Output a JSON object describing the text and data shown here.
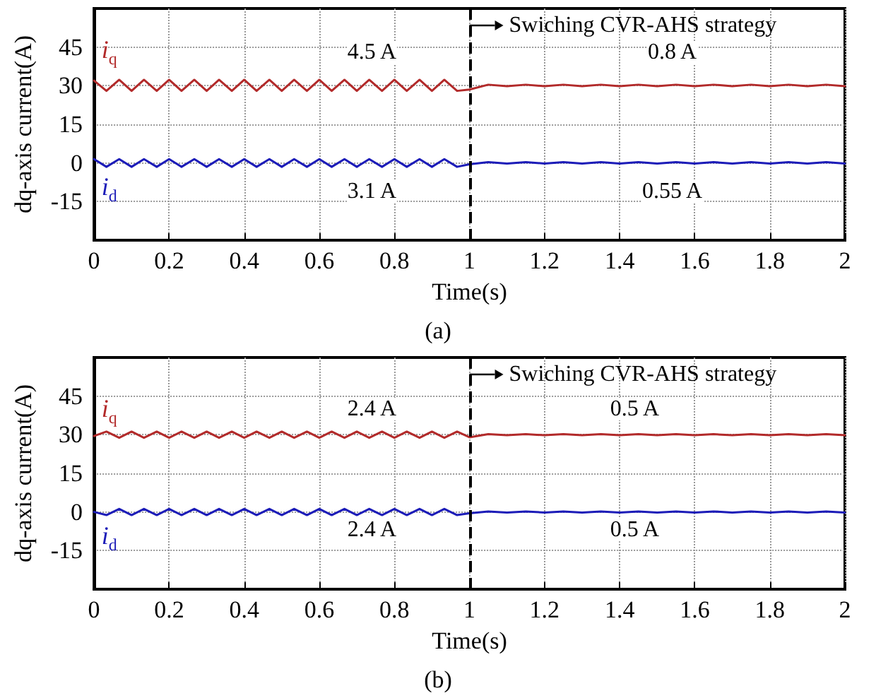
{
  "chart_data": [
    {
      "type": "line",
      "xlabel": "Time(s)",
      "ylabel": "dq-axis current(A)",
      "xlim": [
        0,
        2
      ],
      "ylim": [
        -30,
        60
      ],
      "xticks": [
        0,
        0.2,
        0.4,
        0.6,
        0.8,
        1,
        1.2,
        1.4,
        1.6,
        1.8,
        2
      ],
      "yticks": [
        -15,
        0,
        15,
        30,
        45
      ],
      "grid": true,
      "line_style": "solid",
      "x": [
        0,
        0.033,
        0.067,
        0.1,
        0.133,
        0.167,
        0.2,
        0.233,
        0.267,
        0.3,
        0.333,
        0.367,
        0.4,
        0.433,
        0.467,
        0.5,
        0.533,
        0.567,
        0.6,
        0.633,
        0.667,
        0.7,
        0.733,
        0.767,
        0.8,
        0.833,
        0.867,
        0.9,
        0.933,
        0.967,
        1,
        1.05,
        1.1,
        1.15,
        1.2,
        1.25,
        1.3,
        1.35,
        1.4,
        1.45,
        1.5,
        1.55,
        1.6,
        1.65,
        1.7,
        1.75,
        1.8,
        1.85,
        1.9,
        1.95,
        2
      ],
      "series": [
        {
          "name": "i$_{q}$",
          "color": "#b22a2a",
          "values": [
            32,
            28,
            32.3,
            28,
            32.3,
            28,
            32.3,
            28,
            32.3,
            28,
            32.3,
            28,
            32.3,
            28,
            32.3,
            28,
            32.3,
            28,
            32.3,
            28,
            32.3,
            28,
            32.3,
            28,
            32.3,
            28,
            32.3,
            28,
            32.3,
            28,
            28.5,
            30.4,
            29.8,
            30.4,
            29.8,
            30.4,
            29.8,
            30.4,
            29.8,
            30.4,
            29.8,
            30.4,
            29.8,
            30.4,
            29.8,
            30.4,
            29.8,
            30.4,
            29.8,
            30.4,
            29.8
          ]
        },
        {
          "name": "i$_{d}$",
          "color": "#1c1cb8",
          "values": [
            1.5,
            -1.5,
            1.5,
            -1.5,
            1.5,
            -1.5,
            1.5,
            -1.5,
            1.5,
            -1.5,
            1.5,
            -1.5,
            1.5,
            -1.5,
            1.5,
            -1.5,
            1.5,
            -1.5,
            1.5,
            -1.5,
            1.5,
            -1.5,
            1.5,
            -1.5,
            1.5,
            -1.5,
            1.5,
            -1.5,
            1.5,
            -1.5,
            -0.5,
            0.3,
            -0.2,
            0.3,
            -0.2,
            0.3,
            -0.2,
            0.3,
            -0.2,
            0.3,
            -0.2,
            0.3,
            -0.2,
            0.3,
            -0.2,
            0.3,
            -0.2,
            0.3,
            -0.2,
            0.3,
            -0.2
          ]
        }
      ],
      "ref_lines": [
        {
          "axis": "x",
          "value": 1,
          "label": "Swiching CVR-AHS strategy",
          "line_style": "dashed",
          "color": "#000000"
        }
      ],
      "annotations": [
        {
          "text": "4.5 A",
          "x": 0.74,
          "y": 43
        },
        {
          "text": "0.8 A",
          "x": 1.54,
          "y": 43
        },
        {
          "text": "3.1 A",
          "x": 0.74,
          "y": -11
        },
        {
          "text": "0.55 A",
          "x": 1.54,
          "y": -11
        },
        "(a)"
      ]
    },
    {
      "type": "line",
      "xlabel": "Time(s)",
      "ylabel": "dq-axis current(A)",
      "xlim": [
        0,
        2
      ],
      "ylim": [
        -30,
        60
      ],
      "xticks": [
        0,
        0.2,
        0.4,
        0.6,
        0.8,
        1,
        1.2,
        1.4,
        1.6,
        1.8,
        2
      ],
      "yticks": [
        -15,
        0,
        15,
        30,
        45
      ],
      "grid": true,
      "line_style": "solid",
      "x": [
        0,
        0.033,
        0.067,
        0.1,
        0.133,
        0.167,
        0.2,
        0.233,
        0.267,
        0.3,
        0.333,
        0.367,
        0.4,
        0.433,
        0.467,
        0.5,
        0.533,
        0.567,
        0.6,
        0.633,
        0.667,
        0.7,
        0.733,
        0.767,
        0.8,
        0.833,
        0.867,
        0.9,
        0.933,
        0.967,
        1,
        1.05,
        1.1,
        1.15,
        1.2,
        1.25,
        1.3,
        1.35,
        1.4,
        1.45,
        1.5,
        1.55,
        1.6,
        1.65,
        1.7,
        1.75,
        1.8,
        1.85,
        1.9,
        1.95,
        2
      ],
      "series": [
        {
          "name": "i$_{q}$",
          "color": "#b22a2a",
          "values": [
            29.5,
            31.2,
            28.8,
            31.2,
            28.8,
            31.2,
            28.8,
            31.2,
            28.8,
            31.2,
            28.8,
            31.2,
            28.8,
            31.2,
            28.8,
            31.2,
            28.8,
            31.2,
            28.8,
            31.2,
            28.8,
            31.2,
            28.8,
            31.2,
            28.8,
            31.2,
            28.8,
            31.2,
            28.8,
            31.2,
            29,
            30.2,
            29.8,
            30.2,
            29.8,
            30.2,
            29.8,
            30.2,
            29.8,
            30.2,
            29.8,
            30.2,
            29.8,
            30.2,
            29.8,
            30.2,
            29.8,
            30.2,
            29.8,
            30.2,
            29.8
          ]
        },
        {
          "name": "i$_{d}$",
          "color": "#1c1cb8",
          "values": [
            0,
            -1.2,
            1.2,
            -1.2,
            1.2,
            -1.2,
            1.2,
            -1.2,
            1.2,
            -1.2,
            1.2,
            -1.2,
            1.2,
            -1.2,
            1.2,
            -1.2,
            1.2,
            -1.2,
            1.2,
            -1.2,
            1.2,
            -1.2,
            1.2,
            -1.2,
            1.2,
            -1.2,
            1.2,
            -1.2,
            1.2,
            -1.2,
            -0.5,
            0.2,
            -0.2,
            0.2,
            -0.2,
            0.2,
            -0.2,
            0.2,
            -0.2,
            0.2,
            -0.2,
            0.2,
            -0.2,
            0.2,
            -0.2,
            0.2,
            -0.2,
            0.2,
            -0.2,
            0.2,
            -0.2
          ]
        }
      ],
      "ref_lines": [
        {
          "axis": "x",
          "value": 1,
          "label": "Swiching CVR-AHS strategy",
          "line_style": "dashed",
          "color": "#000000"
        }
      ],
      "annotations": [
        {
          "text": "2.4 A",
          "x": 0.74,
          "y": 40
        },
        {
          "text": "0.5 A",
          "x": 1.44,
          "y": 40
        },
        {
          "text": "2.4 A",
          "x": 0.74,
          "y": -7
        },
        {
          "text": "0.5 A",
          "x": 1.44,
          "y": -7
        },
        "(b)"
      ]
    }
  ]
}
